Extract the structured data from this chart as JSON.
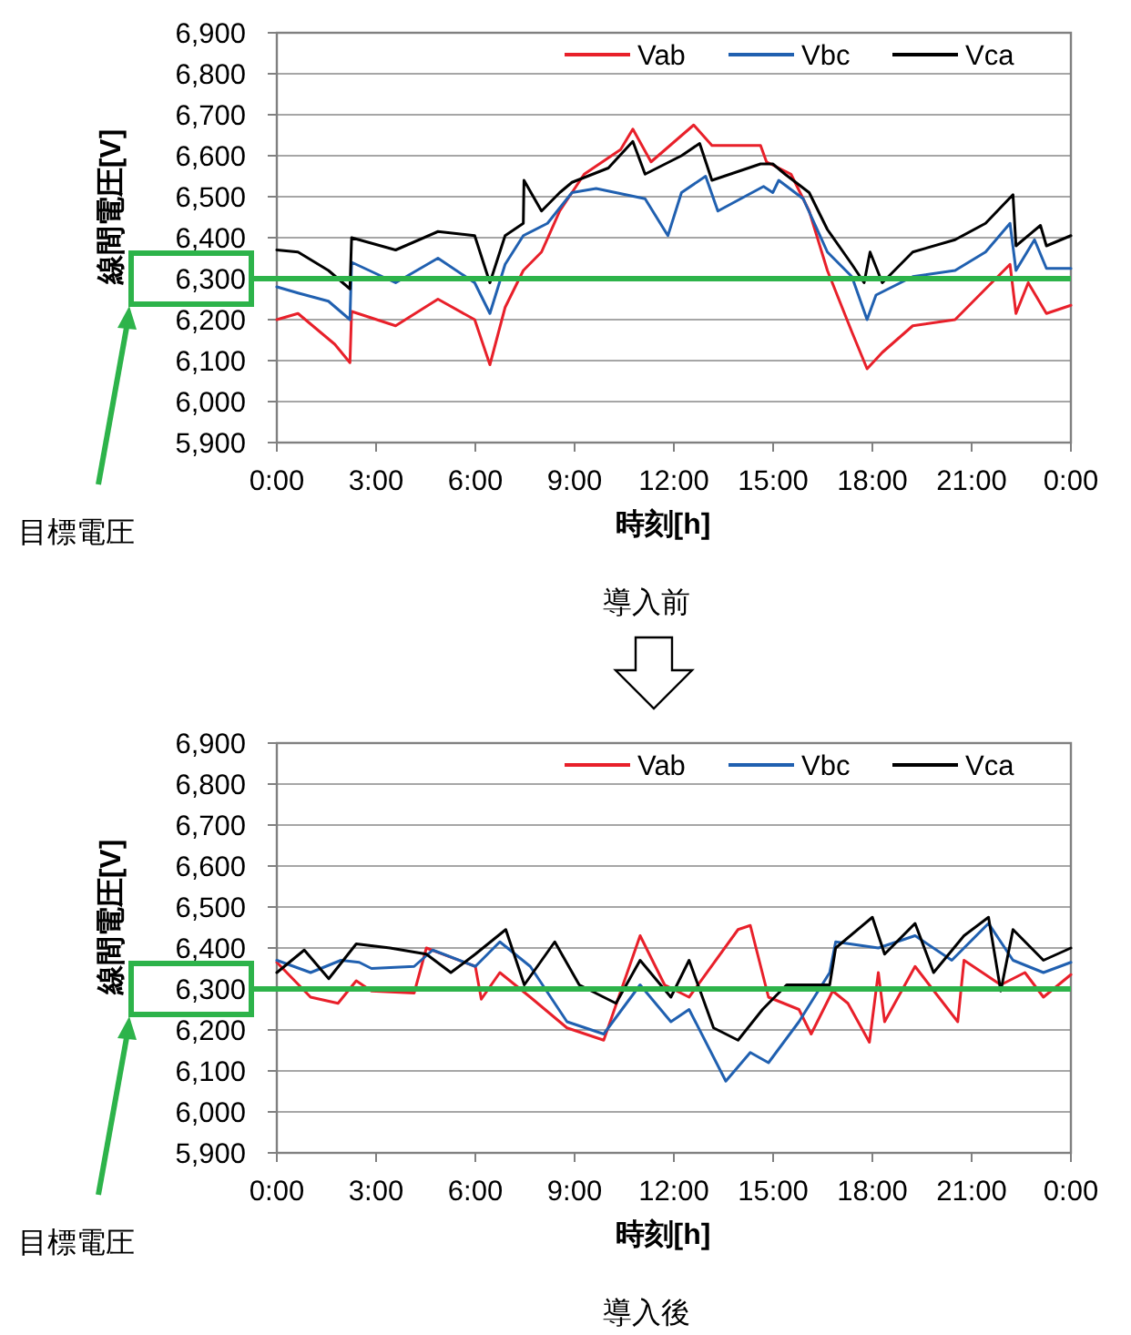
{
  "chart_data": [
    {
      "type": "line",
      "xlabel": "時刻[h]",
      "ylabel": "線間電圧[V]",
      "annotations": [
        "導入前",
        "目標電圧"
      ],
      "xlim": [
        0,
        24
      ],
      "ylim": [
        5900,
        6900
      ],
      "xticks": [
        {
          "value": 0,
          "label": "0:00"
        },
        {
          "value": 3,
          "label": "3:00"
        },
        {
          "value": 6,
          "label": "6:00"
        },
        {
          "value": 9,
          "label": "9:00"
        },
        {
          "value": 12,
          "label": "12:00"
        },
        {
          "value": 15,
          "label": "15:00"
        },
        {
          "value": 18,
          "label": "18:00"
        },
        {
          "value": 21,
          "label": "21:00"
        },
        {
          "value": 24,
          "label": "0:00"
        }
      ],
      "yticks": [
        {
          "value": 5900,
          "label": "5,900"
        },
        {
          "value": 6000,
          "label": "6,000"
        },
        {
          "value": 6100,
          "label": "6,100"
        },
        {
          "value": 6200,
          "label": "6,200"
        },
        {
          "value": 6300,
          "label": "6,300"
        },
        {
          "value": 6400,
          "label": "6,400"
        },
        {
          "value": 6500,
          "label": "6,500"
        },
        {
          "value": 6600,
          "label": "6,600"
        },
        {
          "value": 6700,
          "label": "6,700"
        },
        {
          "value": 6800,
          "label": "6,800"
        },
        {
          "value": 6900,
          "label": "6,900"
        }
      ],
      "grid": "y",
      "legend": "top right",
      "marker": "none",
      "line_style": "solid",
      "ref_lines": [
        {
          "axis": "y",
          "value": 6300,
          "color": "#2db34a"
        }
      ],
      "series": [
        {
          "name": "Vab",
          "color": "#e8202a",
          "x": [
            0,
            0.64,
            1.75,
            2.21,
            2.26,
            3.59,
            4.87,
            5.98,
            6.44,
            6.9,
            7.45,
            8.0,
            8.55,
            9.29,
            10.39,
            10.76,
            11.31,
            12.6,
            13.15,
            14.62,
            14.8,
            15.54,
            16.09,
            16.64,
            17.38,
            17.84,
            18.3,
            19.22,
            20.5,
            21.42,
            22.16,
            22.34,
            22.71,
            23.26,
            24
          ],
          "values": [
            6200,
            6215,
            6140,
            6095,
            6220,
            6185,
            6250,
            6200,
            6090,
            6230,
            6320,
            6365,
            6465,
            6555,
            6615,
            6665,
            6585,
            6675,
            6625,
            6625,
            6585,
            6555,
            6465,
            6320,
            6170,
            6080,
            6120,
            6185,
            6200,
            6275,
            6335,
            6215,
            6290,
            6215,
            6235
          ]
        },
        {
          "name": "Vbc",
          "color": "#2060b0",
          "x": [
            0,
            0.64,
            1.56,
            2.21,
            2.26,
            3.59,
            4.87,
            5.98,
            6.44,
            6.9,
            7.45,
            8.18,
            8.92,
            9.65,
            11.13,
            11.82,
            12.23,
            12.96,
            13.33,
            14.71,
            14.99,
            15.17,
            15.91,
            16.64,
            17.38,
            17.84,
            18.11,
            19.22,
            20.5,
            21.42,
            22.16,
            22.34,
            22.9,
            23.26,
            24
          ],
          "values": [
            6280,
            6265,
            6245,
            6200,
            6340,
            6290,
            6350,
            6290,
            6215,
            6335,
            6405,
            6435,
            6510,
            6520,
            6495,
            6405,
            6510,
            6550,
            6465,
            6525,
            6510,
            6540,
            6495,
            6365,
            6305,
            6200,
            6260,
            6305,
            6320,
            6365,
            6435,
            6320,
            6395,
            6325,
            6325
          ]
        },
        {
          "name": "Vca",
          "color": "#000000",
          "x": [
            0,
            0.64,
            1.56,
            2.21,
            2.26,
            3.59,
            4.87,
            5.98,
            6.44,
            6.9,
            7.45,
            7.47,
            8.0,
            8.55,
            8.92,
            10.02,
            10.76,
            11.13,
            12.23,
            12.78,
            13.15,
            14.62,
            14.99,
            15.36,
            16.09,
            16.64,
            17.38,
            17.75,
            17.93,
            18.3,
            19.22,
            20.5,
            21.42,
            22.25,
            22.34,
            23.08,
            23.26,
            24
          ],
          "values": [
            6370,
            6365,
            6320,
            6275,
            6400,
            6370,
            6415,
            6405,
            6290,
            6405,
            6435,
            6540,
            6465,
            6510,
            6535,
            6570,
            6635,
            6555,
            6600,
            6630,
            6540,
            6580,
            6580,
            6555,
            6510,
            6420,
            6335,
            6290,
            6365,
            6290,
            6365,
            6395,
            6435,
            6505,
            6380,
            6430,
            6380,
            6405
          ]
        }
      ]
    },
    {
      "type": "line",
      "xlabel": "時刻[h]",
      "ylabel": "線間電圧[V]",
      "annotations": [
        "導入後",
        "目標電圧"
      ],
      "xlim": [
        0,
        24
      ],
      "ylim": [
        5900,
        6900
      ],
      "xticks": [
        {
          "value": 0,
          "label": "0:00"
        },
        {
          "value": 3,
          "label": "3:00"
        },
        {
          "value": 6,
          "label": "6:00"
        },
        {
          "value": 9,
          "label": "9:00"
        },
        {
          "value": 12,
          "label": "12:00"
        },
        {
          "value": 15,
          "label": "15:00"
        },
        {
          "value": 18,
          "label": "18:00"
        },
        {
          "value": 21,
          "label": "21:00"
        },
        {
          "value": 24,
          "label": "0:00"
        }
      ],
      "yticks": [
        {
          "value": 5900,
          "label": "5,900"
        },
        {
          "value": 6000,
          "label": "6,000"
        },
        {
          "value": 6100,
          "label": "6,100"
        },
        {
          "value": 6200,
          "label": "6,200"
        },
        {
          "value": 6300,
          "label": "6,300"
        },
        {
          "value": 6400,
          "label": "6,400"
        },
        {
          "value": 6500,
          "label": "6,500"
        },
        {
          "value": 6600,
          "label": "6,600"
        },
        {
          "value": 6700,
          "label": "6,700"
        },
        {
          "value": 6800,
          "label": "6,800"
        },
        {
          "value": 6900,
          "label": "6,900"
        }
      ],
      "grid": "y",
      "legend": "top right",
      "marker": "none",
      "line_style": "solid",
      "ref_lines": [
        {
          "axis": "y",
          "value": 6300,
          "color": "#2db34a"
        }
      ],
      "series": [
        {
          "name": "Vab",
          "color": "#e8202a",
          "x": [
            0,
            1.02,
            1.85,
            2.4,
            2.86,
            4.15,
            4.52,
            6.0,
            6.18,
            6.74,
            7.66,
            8.77,
            9.88,
            10.98,
            11.72,
            12.46,
            13.94,
            14.31,
            14.86,
            15.78,
            16.15,
            16.8,
            17.26,
            17.91,
            18.18,
            18.37,
            19.29,
            20.58,
            20.77,
            21.88,
            22.61,
            23.17,
            24
          ],
          "values": [
            6365,
            6280,
            6265,
            6320,
            6295,
            6290,
            6400,
            6355,
            6275,
            6340,
            6280,
            6205,
            6175,
            6430,
            6310,
            6280,
            6445,
            6455,
            6280,
            6250,
            6190,
            6295,
            6265,
            6170,
            6340,
            6220,
            6355,
            6220,
            6370,
            6310,
            6340,
            6280,
            6335
          ]
        },
        {
          "name": "Vbc",
          "color": "#2060b0",
          "x": [
            0,
            1.02,
            1.94,
            2.49,
            2.86,
            4.15,
            4.71,
            6.0,
            6.74,
            7.66,
            8.77,
            9.88,
            10.98,
            11.91,
            12.46,
            13.57,
            14.31,
            14.86,
            15.78,
            16.71,
            16.89,
            18.18,
            19.29,
            20.4,
            21.51,
            22.25,
            23.17,
            24
          ],
          "values": [
            6370,
            6340,
            6370,
            6365,
            6350,
            6355,
            6395,
            6355,
            6415,
            6355,
            6220,
            6190,
            6310,
            6220,
            6250,
            6075,
            6145,
            6120,
            6220,
            6340,
            6415,
            6400,
            6430,
            6370,
            6460,
            6370,
            6340,
            6365
          ]
        },
        {
          "name": "Vca",
          "color": "#000000",
          "x": [
            0,
            0.83,
            1.57,
            2.4,
            3.42,
            4.52,
            5.26,
            6.0,
            6.92,
            7.48,
            8.4,
            9.14,
            10.25,
            10.98,
            11.91,
            12.46,
            13.2,
            13.94,
            14.68,
            15.41,
            16.71,
            16.89,
            18.0,
            18.37,
            19.29,
            19.85,
            20.77,
            21.51,
            21.88,
            22.25,
            23.17,
            24
          ],
          "values": [
            6340,
            6395,
            6325,
            6410,
            6400,
            6385,
            6340,
            6385,
            6445,
            6310,
            6415,
            6310,
            6265,
            6370,
            6280,
            6370,
            6205,
            6175,
            6250,
            6310,
            6310,
            6400,
            6475,
            6385,
            6460,
            6340,
            6430,
            6475,
            6295,
            6445,
            6370,
            6400
          ]
        }
      ]
    }
  ]
}
